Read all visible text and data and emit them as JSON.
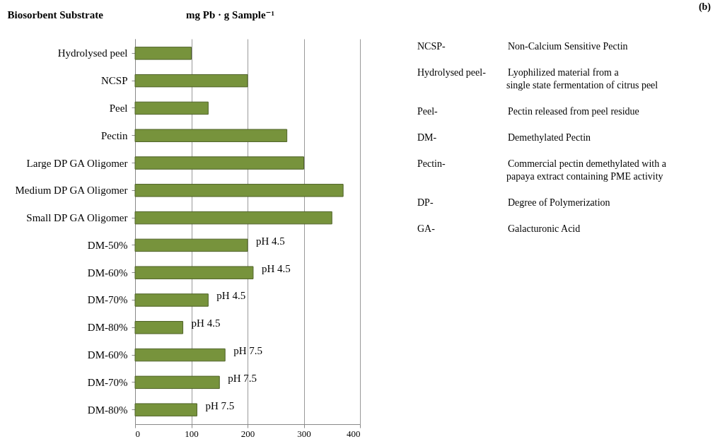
{
  "chart_data": {
    "type": "bar",
    "orientation": "horizontal",
    "xlabel": "mg Pb · g Sample⁻¹",
    "ylabel": "Biosorbent Substrate",
    "categories": [
      "Hydrolysed peel",
      "NCSP",
      "Peel",
      "Pectin",
      "Large DP GA Oligomer",
      "Medium DP GA Oligomer",
      "Small DP GA Oligomer",
      "DM-50%",
      "DM-60%",
      "DM-70%",
      "DM-80%",
      "DM-60%",
      "DM-70%",
      "DM-80%"
    ],
    "values": [
      100,
      200,
      130,
      270,
      300,
      370,
      350,
      200,
      210,
      130,
      85,
      160,
      150,
      110
    ],
    "value_labels": [
      null,
      null,
      null,
      null,
      null,
      null,
      null,
      "pH 4.5",
      "pH 4.5",
      "pH 4.5",
      "pH 4.5",
      "pH 7.5",
      "pH 7.5",
      "pH 7.5"
    ],
    "color": "#77933c",
    "xlim": [
      0,
      400
    ],
    "xticks": [
      0,
      100,
      200,
      300,
      400
    ],
    "grid": "x",
    "annotations": [
      "(b)",
      "NCSP-",
      "Non-Calcium Sensitive Pectin",
      "Hydrolysed peel-",
      "Lyophilized material from a\nsingle state fermentation of citrus peel",
      "Peel-",
      "Pectin released from peel residue",
      "DM-",
      "Demethylated Pectin",
      "Pectin-",
      "Commercial pectin demethylated with a\npapaya extract containing PME activity",
      "DP-",
      "Degree of Polymerization",
      "GA-",
      "Galacturonic Acid"
    ]
  }
}
